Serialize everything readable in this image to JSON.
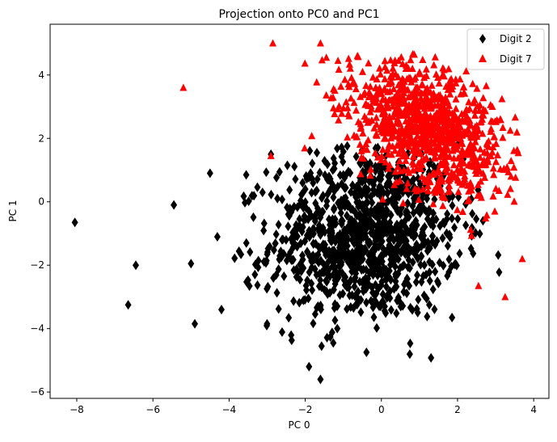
{
  "chart_data": {
    "type": "scatter",
    "title": "Projection onto PC0 and PC1",
    "xlabel": "PC 0",
    "ylabel": "PC 1",
    "xlim": [
      -8.7,
      4.4
    ],
    "ylim": [
      -6.2,
      5.6
    ],
    "x_ticks": [
      -8,
      -6,
      -4,
      -2,
      0,
      2,
      4
    ],
    "y_ticks": [
      -6,
      -4,
      -2,
      0,
      2,
      4
    ],
    "grid": false,
    "legend_position": "top-right",
    "series": [
      {
        "name": "Digit 2",
        "marker": "diamond",
        "color": "#000000",
        "outlier_points": [
          [
            -8.05,
            -0.65
          ],
          [
            -6.65,
            -3.25
          ],
          [
            -6.45,
            -2.0
          ],
          [
            -5.45,
            -0.1
          ],
          [
            -5.0,
            -1.95
          ],
          [
            -4.9,
            -3.85
          ],
          [
            -4.5,
            0.9
          ],
          [
            -4.2,
            -3.4
          ],
          [
            -3.55,
            0.85
          ],
          [
            -2.9,
            1.5
          ],
          [
            -1.9,
            -5.2
          ],
          [
            -1.6,
            -5.6
          ]
        ],
        "dense_region": {
          "x_range": [
            -4.6,
            3.2
          ],
          "y_range": [
            -5.5,
            1.9
          ],
          "center": [
            -0.4,
            -1.0
          ],
          "approx_count": 1100
        }
      },
      {
        "name": "Digit 7",
        "marker": "triangle-up",
        "color": "#ff0000",
        "outlier_points": [
          [
            -5.2,
            3.6
          ],
          [
            -2.85,
            5.0
          ],
          [
            -1.6,
            5.0
          ],
          [
            -2.9,
            1.45
          ],
          [
            3.7,
            -1.8
          ],
          [
            3.25,
            -3.0
          ],
          [
            2.55,
            -2.65
          ]
        ],
        "dense_region": {
          "x_range": [
            -2.9,
            3.6
          ],
          "y_range": [
            -1.9,
            4.7
          ],
          "center": [
            1.2,
            2.4
          ],
          "approx_count": 1000
        }
      }
    ]
  }
}
